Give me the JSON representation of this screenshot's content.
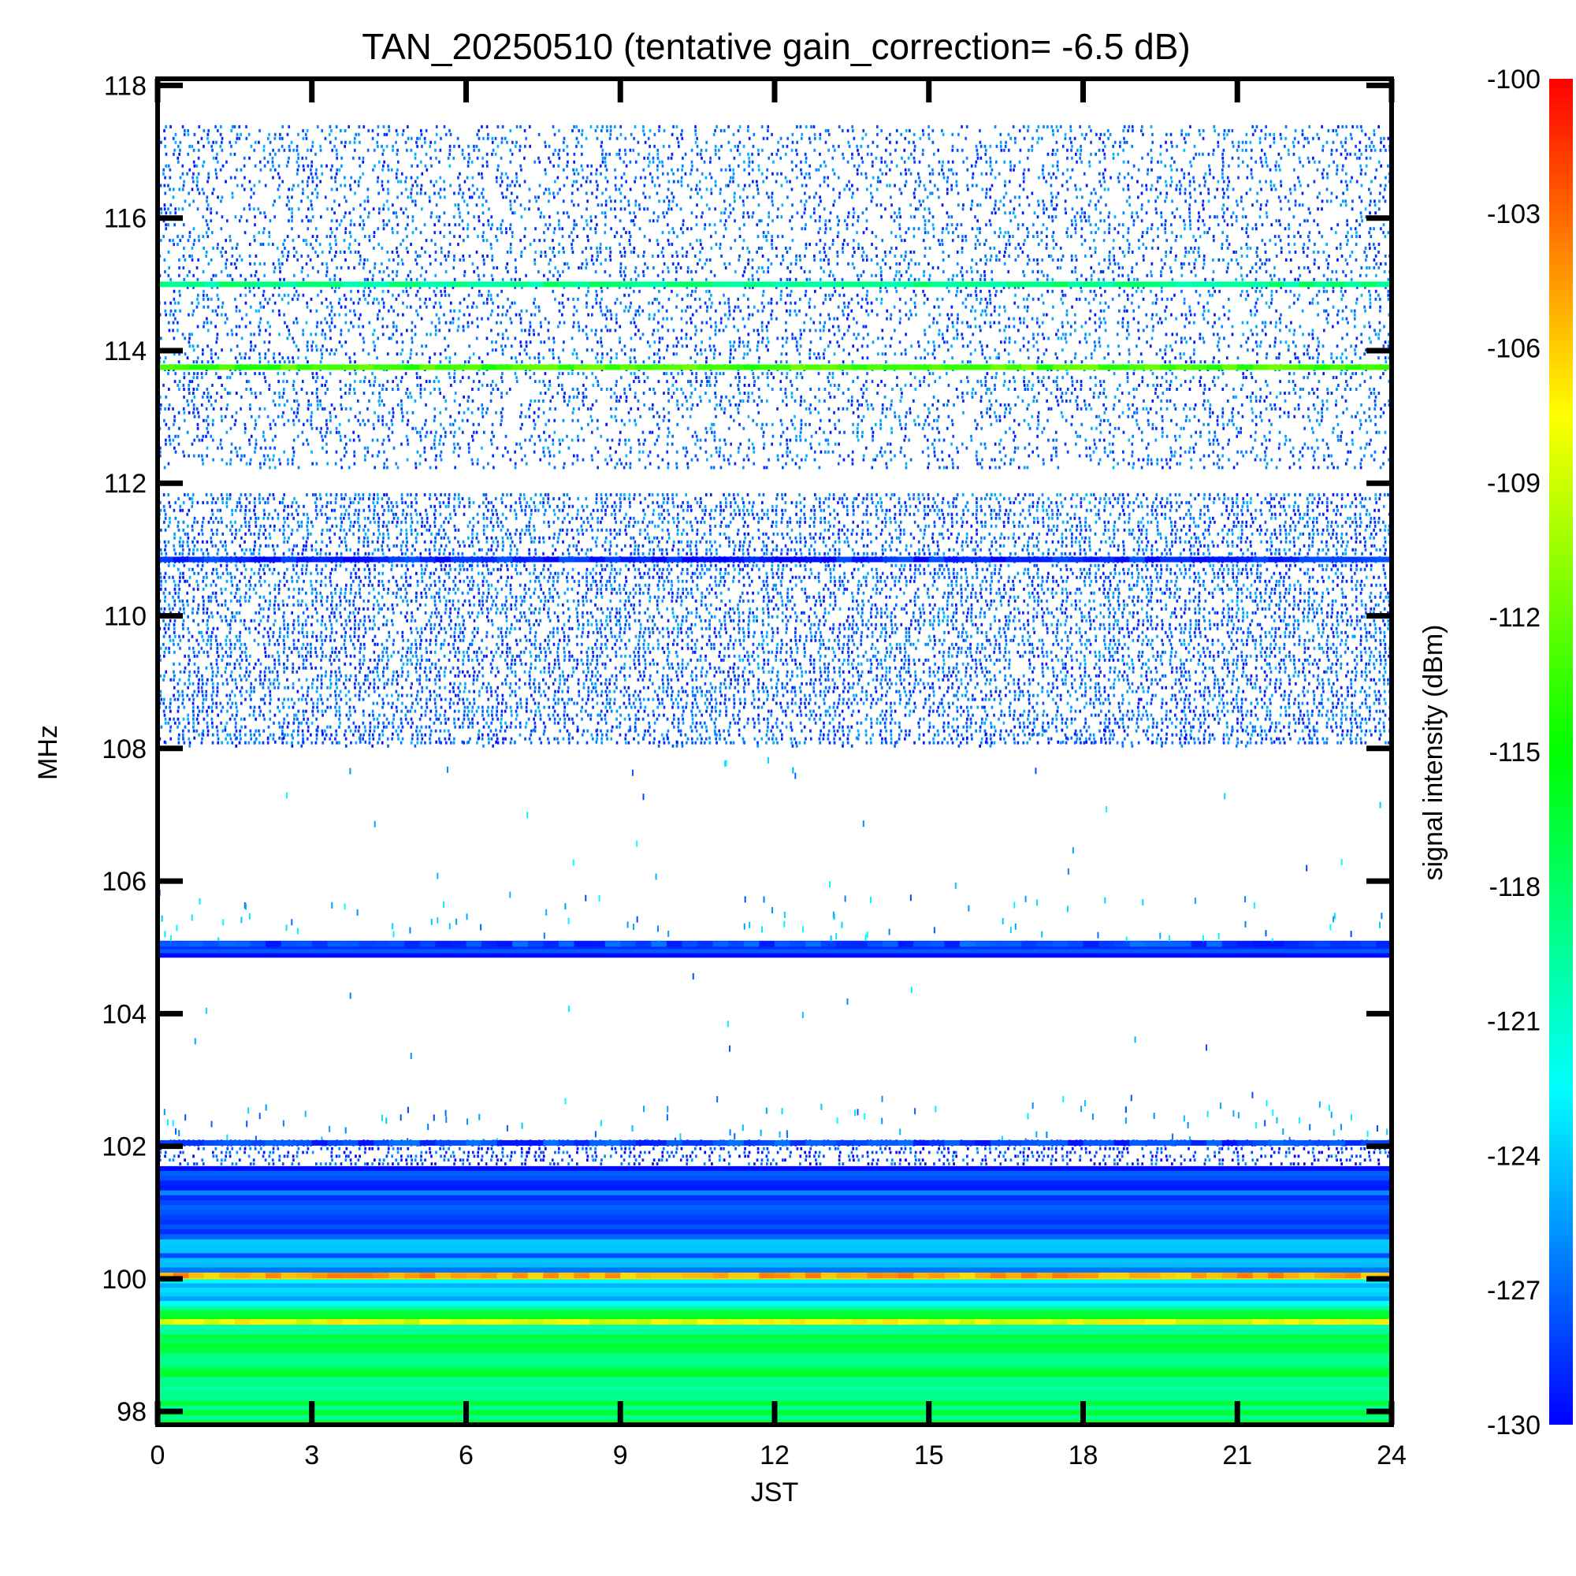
{
  "chart_data": {
    "type": "heatmap",
    "title": "TAN_20250510 (tentative gain_correction= -6.5 dB)",
    "xlabel": "JST",
    "ylabel": "MHz",
    "colorbar_label": "signal intensity (dBm)",
    "xlim": [
      0,
      24
    ],
    "ylim": [
      97.8,
      118.1
    ],
    "x_ticks": [
      "0",
      "3",
      "6",
      "9",
      "12",
      "15",
      "18",
      "21",
      "24"
    ],
    "y_ticks": [
      "98",
      "100",
      "102",
      "104",
      "106",
      "108",
      "110",
      "112",
      "114",
      "116",
      "118"
    ],
    "colorbar_ticks": [
      "-100",
      "-103",
      "-106",
      "-109",
      "-112",
      "-115",
      "-118",
      "-121",
      "-124",
      "-127",
      "-130"
    ],
    "color_range_dbm": [
      -130,
      -100
    ],
    "colormap": [
      "#0000ff",
      "#0080ff",
      "#00ffff",
      "#00ff80",
      "#00ff00",
      "#80ff00",
      "#ffff00",
      "#ff8000",
      "#ff0000"
    ],
    "bands": [
      {
        "f_min": 97.8,
        "f_max": 99.6,
        "level_dbm": -118,
        "kind": "solid"
      },
      {
        "f_min": 99.6,
        "f_max": 100.0,
        "level_dbm": -124,
        "kind": "solid"
      },
      {
        "f_min": 100.0,
        "f_max": 100.1,
        "level_dbm": -106,
        "kind": "solid"
      },
      {
        "f_min": 100.1,
        "f_max": 100.6,
        "level_dbm": -126,
        "kind": "solid"
      },
      {
        "f_min": 100.6,
        "f_max": 101.7,
        "level_dbm": -128,
        "kind": "solid"
      },
      {
        "f_min": 101.7,
        "f_max": 102.1,
        "level_dbm": -129,
        "kind": "speckle",
        "density": 0.55
      },
      {
        "f_min": 104.85,
        "f_max": 105.1,
        "level_dbm": -128,
        "kind": "solid"
      },
      {
        "f_min": 108.05,
        "f_max": 111.85,
        "level_dbm": -128,
        "kind": "speckle",
        "density": 0.6
      },
      {
        "f_min": 112.2,
        "f_max": 117.4,
        "level_dbm": -128,
        "kind": "speckle",
        "density": 0.35
      },
      {
        "f_min": 108.0,
        "f_max": 108.3,
        "level_dbm": -129,
        "kind": "speckle",
        "density": 0.08
      }
    ],
    "lines": [
      {
        "freq": 115.0,
        "level_dbm": -119
      },
      {
        "freq": 113.75,
        "level_dbm": -113
      },
      {
        "freq": 110.85,
        "level_dbm": -129
      },
      {
        "freq": 102.05,
        "level_dbm": -128
      },
      {
        "freq": 105.05,
        "level_dbm": -128
      },
      {
        "freq": 100.05,
        "level_dbm": -105
      },
      {
        "freq": 99.35,
        "level_dbm": -108
      }
    ]
  }
}
